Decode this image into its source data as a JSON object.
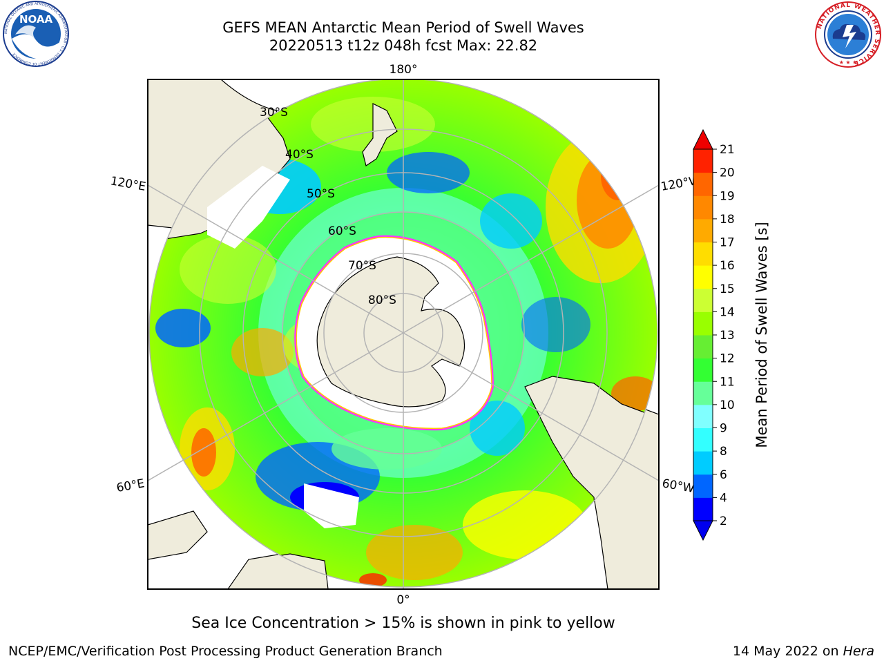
{
  "header": {
    "title_line1": "GEFS MEAN Antarctic Mean Period of Swell Waves",
    "title_line2": "20220513 t12z 048h fcst   Max: 22.82",
    "logo_left": "NOAA",
    "logo_left_ring": "NATIONAL OCEANIC AND ATMOSPHERIC ADMINISTRATION · U.S. DEPARTMENT OF COMMERCE",
    "logo_right_ring": "NATIONAL WEATHER SERVICE"
  },
  "map": {
    "projection": "south-polar-stereographic",
    "longitude_labels": [
      "180°",
      "120°E",
      "120°W",
      "60°E",
      "60°W",
      "0°"
    ],
    "latitude_labels": [
      "30°S",
      "40°S",
      "50°S",
      "60°S",
      "70°S",
      "80°S"
    ],
    "colors": {
      "land": "#efecdc",
      "grid": "#b4b4b4",
      "sea_ice": "#ff33ff"
    }
  },
  "colorbar": {
    "label": "Mean Period of Swell Waves [s]",
    "ticks": [
      "2",
      "4",
      "6",
      "8",
      "9",
      "10",
      "11",
      "12",
      "13",
      "14",
      "15",
      "16",
      "17",
      "18",
      "19",
      "20",
      "21"
    ],
    "colors": [
      "#0000ff",
      "#0066ff",
      "#00ccff",
      "#33ffff",
      "#80ffff",
      "#66ff99",
      "#33ff33",
      "#66ee33",
      "#99ff00",
      "#ccff33",
      "#ffff00",
      "#ffdd00",
      "#ffaa00",
      "#ff8800",
      "#ff6600",
      "#ff2200"
    ],
    "under_color": "#0000ee",
    "over_color": "#ee0000"
  },
  "chart_data": {
    "type": "heatmap",
    "title": "GEFS MEAN Antarctic Mean Period of Swell Waves",
    "subtitle": "20220513 t12z 048h fcst   Max: 22.82",
    "colorbar_label": "Mean Period of Swell Waves [s]",
    "value_range": [
      2,
      21
    ],
    "max": 22.82,
    "units": "s"
  },
  "footer": {
    "caption": "Sea Ice Concentration > 15% is shown in pink to yellow",
    "credit": "NCEP/EMC/Verification Post Processing Product Generation Branch",
    "date_text": "14 May 2022 on ",
    "date_host": "Hera"
  }
}
